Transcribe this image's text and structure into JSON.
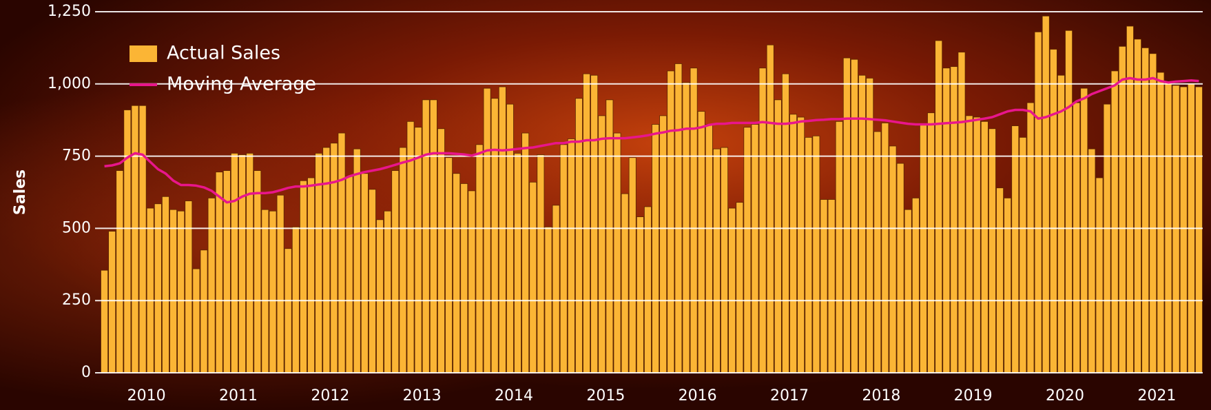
{
  "chart_data": {
    "type": "bar-line",
    "y_label": "Sales",
    "categories": [
      null,
      null,
      null,
      null,
      null,
      null,
      "2010",
      null,
      null,
      null,
      null,
      null,
      null,
      null,
      null,
      null,
      null,
      null,
      "2011",
      null,
      null,
      null,
      null,
      null,
      null,
      null,
      null,
      null,
      null,
      null,
      "2012",
      null,
      null,
      null,
      null,
      null,
      null,
      null,
      null,
      null,
      null,
      null,
      "2013",
      null,
      null,
      null,
      null,
      null,
      null,
      null,
      null,
      null,
      null,
      null,
      "2014",
      null,
      null,
      null,
      null,
      null,
      null,
      null,
      null,
      null,
      null,
      null,
      "2015",
      null,
      null,
      null,
      null,
      null,
      null,
      null,
      null,
      null,
      null,
      null,
      "2016",
      null,
      null,
      null,
      null,
      null,
      null,
      null,
      null,
      null,
      null,
      null,
      "2017",
      null,
      null,
      null,
      null,
      null,
      null,
      null,
      null,
      null,
      null,
      null,
      "2018",
      null,
      null,
      null,
      null,
      null,
      null,
      null,
      null,
      null,
      null,
      null,
      "2019",
      null,
      null,
      null,
      null,
      null,
      null,
      null,
      null,
      null,
      null,
      null,
      "2020",
      null,
      null,
      null,
      null,
      null,
      null,
      null,
      null,
      null,
      null,
      null,
      "2021",
      null,
      null,
      null,
      null,
      null
    ],
    "series": [
      {
        "name": "Actual Sales",
        "type": "bar",
        "color": "#fbb535",
        "values": [
          355,
          490,
          700,
          910,
          925,
          925,
          570,
          585,
          610,
          565,
          560,
          595,
          360,
          425,
          605,
          695,
          700,
          760,
          755,
          760,
          700,
          565,
          560,
          615,
          430,
          505,
          665,
          675,
          760,
          780,
          795,
          830,
          680,
          775,
          690,
          635,
          530,
          560,
          700,
          780,
          870,
          850,
          945,
          945,
          845,
          745,
          690,
          655,
          630,
          790,
          985,
          950,
          990,
          930,
          760,
          830,
          660,
          755,
          505,
          580,
          790,
          810,
          950,
          1035,
          1030,
          890,
          945,
          830,
          620,
          745,
          540,
          575,
          860,
          890,
          1045,
          1070,
          1005,
          1055,
          905,
          860,
          775,
          780,
          570,
          590,
          850,
          860,
          1055,
          1135,
          945,
          1035,
          895,
          885,
          815,
          820,
          600,
          600,
          870,
          1090,
          1085,
          1030,
          1020,
          835,
          865,
          785,
          725,
          565,
          605,
          860,
          900,
          1150,
          1055,
          1060,
          1110,
          890,
          885,
          870,
          845,
          640,
          605,
          855,
          815,
          935,
          1180,
          1235,
          1120,
          1030,
          1185,
          935,
          985,
          775,
          675,
          930,
          1045,
          1130,
          1200,
          1155,
          1125,
          1105,
          1040,
          1005,
          995,
          990,
          1000,
          990
        ]
      },
      {
        "name": "Moving Average",
        "type": "line",
        "color": "#e8168c",
        "values": [
          715,
          718,
          725,
          745,
          760,
          755,
          730,
          705,
          690,
          665,
          650,
          650,
          648,
          642,
          630,
          610,
          590,
          595,
          610,
          620,
          622,
          622,
          625,
          632,
          640,
          645,
          645,
          648,
          652,
          655,
          660,
          668,
          680,
          688,
          695,
          700,
          705,
          712,
          720,
          728,
          735,
          745,
          755,
          760,
          760,
          760,
          758,
          756,
          752,
          760,
          770,
          772,
          770,
          772,
          775,
          778,
          780,
          785,
          790,
          795,
          795,
          800,
          800,
          805,
          805,
          810,
          812,
          812,
          812,
          815,
          818,
          822,
          828,
          832,
          838,
          840,
          845,
          845,
          850,
          858,
          862,
          862,
          865,
          865,
          865,
          865,
          868,
          865,
          862,
          862,
          865,
          870,
          872,
          875,
          876,
          878,
          878,
          880,
          880,
          880,
          878,
          876,
          874,
          870,
          866,
          862,
          860,
          860,
          860,
          862,
          864,
          866,
          868,
          872,
          876,
          880,
          885,
          895,
          905,
          910,
          910,
          905,
          880,
          885,
          895,
          905,
          920,
          940,
          950,
          965,
          975,
          985,
          995,
          1015,
          1020,
          1015,
          1015,
          1020,
          1010,
          1005,
          1008,
          1010,
          1012,
          1010
        ]
      }
    ],
    "ylim": [
      0,
      1250
    ],
    "yticks": [
      0,
      250,
      500,
      750,
      {
        "value": 1000,
        "label": "1,000"
      },
      {
        "value": 1250,
        "label": "1,250"
      }
    ],
    "grid": true,
    "legend": "top-left"
  }
}
